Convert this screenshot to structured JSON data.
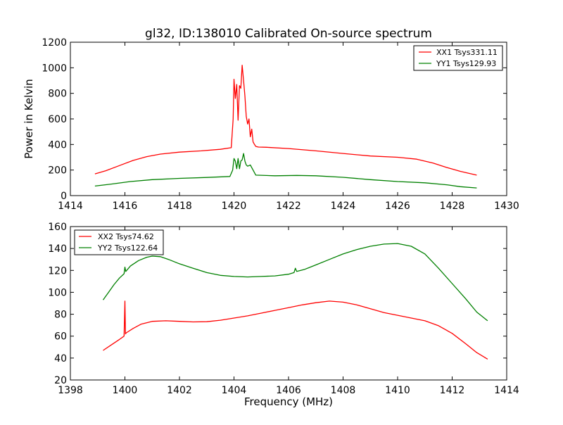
{
  "chart_data": [
    {
      "type": "line",
      "title": "gl32, ID:138010 Calibrated On-source spectrum",
      "xlabel": "",
      "ylabel": "Power in Kelvin",
      "xlim": [
        1414,
        1430
      ],
      "ylim": [
        0,
        1200
      ],
      "xticks": [
        1414,
        1416,
        1418,
        1420,
        1422,
        1424,
        1426,
        1428,
        1430
      ],
      "yticks": [
        0,
        200,
        400,
        600,
        800,
        1000,
        1200
      ],
      "legend_position": "top-right",
      "series": [
        {
          "name": "XX1 Tsys331.11",
          "color": "#ff0000",
          "x": [
            1414.9,
            1415.3,
            1415.8,
            1416.3,
            1416.8,
            1417.3,
            1418,
            1418.8,
            1419.5,
            1419.9,
            1419.97,
            1420.0,
            1420.05,
            1420.1,
            1420.15,
            1420.2,
            1420.25,
            1420.3,
            1420.35,
            1420.4,
            1420.45,
            1420.5,
            1420.55,
            1420.6,
            1420.65,
            1420.7,
            1420.75,
            1420.8,
            1420.9,
            1421.2,
            1422,
            1423,
            1424,
            1425,
            1426,
            1426.7,
            1427.3,
            1427.8,
            1428.3,
            1428.9
          ],
          "y": [
            170,
            195,
            235,
            275,
            305,
            325,
            340,
            350,
            362,
            375,
            600,
            910,
            760,
            870,
            590,
            860,
            840,
            1020,
            900,
            780,
            620,
            560,
            600,
            460,
            520,
            420,
            400,
            385,
            380,
            378,
            368,
            350,
            330,
            310,
            300,
            285,
            255,
            220,
            190,
            160
          ]
        },
        {
          "name": "YY1 Tsys129.93",
          "color": "#008000",
          "x": [
            1414.9,
            1415.5,
            1416.2,
            1417,
            1418,
            1419,
            1419.85,
            1419.95,
            1420.0,
            1420.05,
            1420.1,
            1420.15,
            1420.2,
            1420.25,
            1420.3,
            1420.35,
            1420.4,
            1420.45,
            1420.5,
            1420.6,
            1420.7,
            1420.8,
            1421.5,
            1422.3,
            1423,
            1424,
            1425,
            1426,
            1427,
            1427.8,
            1428.3,
            1428.9
          ],
          "y": [
            75,
            90,
            110,
            125,
            135,
            142,
            150,
            200,
            290,
            270,
            210,
            290,
            210,
            270,
            280,
            330,
            270,
            240,
            230,
            240,
            200,
            160,
            155,
            158,
            155,
            143,
            125,
            110,
            100,
            85,
            70,
            60
          ]
        }
      ]
    },
    {
      "type": "line",
      "title": "",
      "xlabel": "Frequency (MHz)",
      "ylabel": "",
      "xlim": [
        1398,
        1414
      ],
      "ylim": [
        20,
        160
      ],
      "xticks": [
        1398,
        1400,
        1402,
        1404,
        1406,
        1408,
        1410,
        1412,
        1414
      ],
      "yticks": [
        20,
        40,
        60,
        80,
        100,
        120,
        140,
        160
      ],
      "legend_position": "top-left",
      "series": [
        {
          "name": "XX2 Tsys74.62",
          "color": "#ff0000",
          "x": [
            1399.2,
            1399.5,
            1399.8,
            1399.97,
            1400.0,
            1400.02,
            1400.05,
            1400.3,
            1400.6,
            1401,
            1401.5,
            1402,
            1402.5,
            1403,
            1403.5,
            1404,
            1404.5,
            1405,
            1405.5,
            1406,
            1406.5,
            1407,
            1407.5,
            1408,
            1408.5,
            1409,
            1409.5,
            1410,
            1410.5,
            1411,
            1411.5,
            1412,
            1412.5,
            1412.9,
            1413.3
          ],
          "y": [
            47,
            52,
            57,
            60,
            92,
            62,
            63,
            67,
            71,
            73.5,
            74,
            73.5,
            73,
            73.2,
            74.5,
            76.5,
            78.5,
            81,
            83.5,
            86,
            88.5,
            90.5,
            92,
            91,
            88.5,
            85,
            81.5,
            79,
            76.5,
            74,
            69.5,
            62.5,
            53,
            45,
            39
          ]
        },
        {
          "name": "YY2 Tsys122.64",
          "color": "#008000",
          "x": [
            1399.2,
            1399.4,
            1399.6,
            1399.8,
            1399.97,
            1400.0,
            1400.03,
            1400.2,
            1400.5,
            1400.8,
            1401,
            1401.3,
            1401.6,
            1402,
            1402.5,
            1403,
            1403.5,
            1404,
            1404.5,
            1405,
            1405.5,
            1406,
            1406.2,
            1406.25,
            1406.3,
            1406.6,
            1407,
            1407.5,
            1408,
            1408.5,
            1409,
            1409.5,
            1410,
            1410.5,
            1411,
            1411.5,
            1412,
            1412.5,
            1412.9,
            1413.3
          ],
          "y": [
            93,
            100,
            107,
            113,
            117,
            123,
            119,
            124,
            129,
            132,
            133,
            132.5,
            130,
            126,
            122,
            118,
            115.5,
            114.5,
            114,
            114.5,
            115,
            116.5,
            118,
            122,
            119,
            121,
            125,
            130,
            135,
            139,
            142,
            144,
            144.5,
            142,
            135,
            122,
            108,
            94,
            82,
            74
          ]
        }
      ]
    }
  ]
}
